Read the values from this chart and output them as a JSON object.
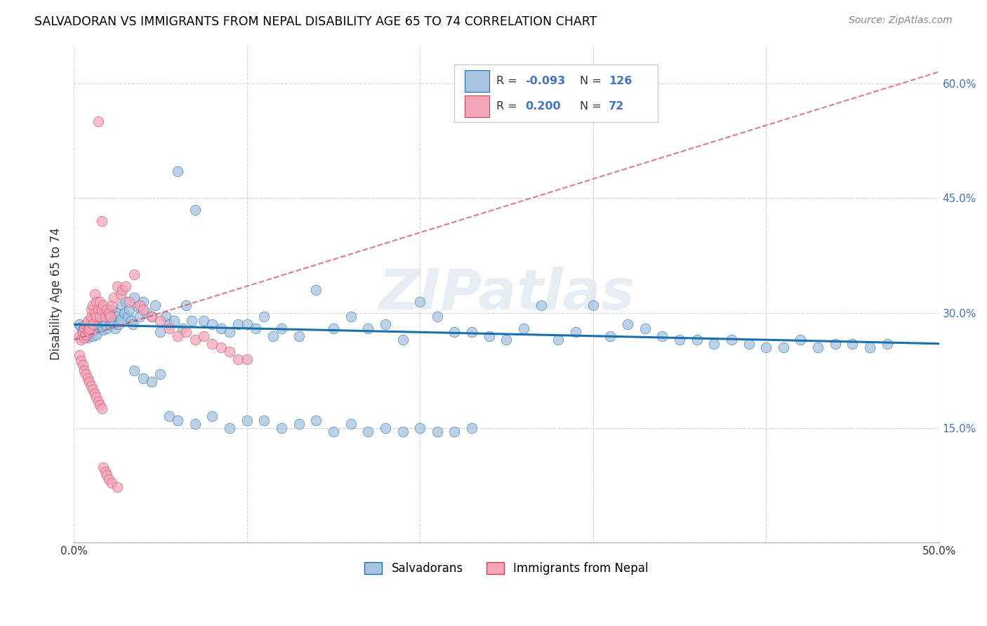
{
  "title": "SALVADORAN VS IMMIGRANTS FROM NEPAL DISABILITY AGE 65 TO 74 CORRELATION CHART",
  "source": "Source: ZipAtlas.com",
  "ylabel_label": "Disability Age 65 to 74",
  "xlim": [
    0.0,
    0.5
  ],
  "ylim": [
    0.0,
    0.65
  ],
  "x_ticks": [
    0.0,
    0.1,
    0.2,
    0.3,
    0.4,
    0.5
  ],
  "x_tick_labels": [
    "0.0%",
    "",
    "",
    "",
    "",
    "50.0%"
  ],
  "y_ticks": [
    0.0,
    0.15,
    0.3,
    0.45,
    0.6
  ],
  "y_tick_labels_right": [
    "",
    "15.0%",
    "30.0%",
    "45.0%",
    "60.0%"
  ],
  "R_salvadoran": -0.093,
  "N_salvadoran": 126,
  "R_nepal": 0.2,
  "N_nepal": 72,
  "salvadoran_color": "#a8c4e0",
  "nepal_color": "#f4a7b9",
  "trendline_salvadoran_color": "#1a6faf",
  "trendline_nepal_color": "#d04060",
  "watermark": "ZIPatlas",
  "trendline_salv_x0": 0.0,
  "trendline_salv_y0": 0.285,
  "trendline_salv_x1": 0.5,
  "trendline_salv_y1": 0.26,
  "trendline_nepal_x0": 0.0,
  "trendline_nepal_y0": 0.265,
  "trendline_nepal_x1": 0.5,
  "trendline_nepal_y1": 0.615,
  "salv_x": [
    0.003,
    0.004,
    0.005,
    0.006,
    0.007,
    0.008,
    0.009,
    0.01,
    0.01,
    0.011,
    0.011,
    0.012,
    0.012,
    0.013,
    0.013,
    0.014,
    0.015,
    0.015,
    0.016,
    0.016,
    0.017,
    0.018,
    0.018,
    0.019,
    0.02,
    0.02,
    0.021,
    0.022,
    0.022,
    0.023,
    0.024,
    0.025,
    0.025,
    0.026,
    0.027,
    0.028,
    0.029,
    0.03,
    0.031,
    0.032,
    0.033,
    0.034,
    0.035,
    0.037,
    0.038,
    0.04,
    0.042,
    0.045,
    0.047,
    0.05,
    0.053,
    0.055,
    0.058,
    0.06,
    0.063,
    0.065,
    0.068,
    0.07,
    0.075,
    0.08,
    0.085,
    0.09,
    0.095,
    0.1,
    0.105,
    0.11,
    0.115,
    0.12,
    0.13,
    0.14,
    0.15,
    0.16,
    0.17,
    0.18,
    0.19,
    0.2,
    0.21,
    0.22,
    0.23,
    0.24,
    0.25,
    0.26,
    0.27,
    0.28,
    0.29,
    0.3,
    0.31,
    0.32,
    0.33,
    0.34,
    0.35,
    0.36,
    0.37,
    0.38,
    0.39,
    0.4,
    0.41,
    0.42,
    0.43,
    0.44,
    0.45,
    0.46,
    0.47,
    0.035,
    0.04,
    0.045,
    0.05,
    0.055,
    0.06,
    0.07,
    0.08,
    0.09,
    0.1,
    0.11,
    0.12,
    0.13,
    0.14,
    0.15,
    0.16,
    0.17,
    0.18,
    0.19,
    0.2,
    0.21,
    0.22,
    0.23
  ],
  "salv_y": [
    0.285,
    0.282,
    0.278,
    0.28,
    0.275,
    0.268,
    0.272,
    0.288,
    0.275,
    0.27,
    0.28,
    0.285,
    0.278,
    0.29,
    0.272,
    0.295,
    0.288,
    0.285,
    0.282,
    0.295,
    0.278,
    0.29,
    0.285,
    0.28,
    0.295,
    0.3,
    0.285,
    0.305,
    0.29,
    0.285,
    0.28,
    0.3,
    0.295,
    0.285,
    0.292,
    0.31,
    0.3,
    0.315,
    0.295,
    0.305,
    0.29,
    0.285,
    0.32,
    0.308,
    0.295,
    0.315,
    0.3,
    0.295,
    0.31,
    0.275,
    0.295,
    0.285,
    0.29,
    0.485,
    0.28,
    0.31,
    0.29,
    0.435,
    0.29,
    0.285,
    0.28,
    0.275,
    0.285,
    0.285,
    0.28,
    0.295,
    0.27,
    0.28,
    0.27,
    0.33,
    0.28,
    0.295,
    0.28,
    0.285,
    0.265,
    0.315,
    0.295,
    0.275,
    0.275,
    0.27,
    0.265,
    0.28,
    0.31,
    0.265,
    0.275,
    0.31,
    0.27,
    0.285,
    0.28,
    0.27,
    0.265,
    0.265,
    0.26,
    0.265,
    0.26,
    0.255,
    0.255,
    0.265,
    0.255,
    0.26,
    0.26,
    0.255,
    0.26,
    0.225,
    0.215,
    0.21,
    0.22,
    0.165,
    0.16,
    0.155,
    0.165,
    0.15,
    0.16,
    0.16,
    0.15,
    0.155,
    0.16,
    0.145,
    0.155,
    0.145,
    0.15,
    0.145,
    0.15,
    0.145,
    0.145,
    0.15
  ],
  "nepal_x": [
    0.003,
    0.004,
    0.005,
    0.006,
    0.006,
    0.007,
    0.007,
    0.008,
    0.008,
    0.009,
    0.009,
    0.01,
    0.01,
    0.011,
    0.011,
    0.012,
    0.012,
    0.013,
    0.013,
    0.014,
    0.014,
    0.015,
    0.015,
    0.016,
    0.016,
    0.017,
    0.018,
    0.019,
    0.02,
    0.021,
    0.022,
    0.023,
    0.025,
    0.027,
    0.028,
    0.03,
    0.032,
    0.035,
    0.038,
    0.04,
    0.045,
    0.05,
    0.055,
    0.06,
    0.065,
    0.07,
    0.075,
    0.08,
    0.085,
    0.09,
    0.095,
    0.1,
    0.003,
    0.004,
    0.005,
    0.006,
    0.007,
    0.008,
    0.009,
    0.01,
    0.011,
    0.012,
    0.013,
    0.014,
    0.015,
    0.016,
    0.017,
    0.018,
    0.019,
    0.02,
    0.022,
    0.025
  ],
  "nepal_y": [
    0.27,
    0.265,
    0.275,
    0.268,
    0.28,
    0.272,
    0.285,
    0.278,
    0.29,
    0.275,
    0.28,
    0.295,
    0.305,
    0.285,
    0.31,
    0.3,
    0.325,
    0.295,
    0.315,
    0.305,
    0.55,
    0.295,
    0.315,
    0.42,
    0.305,
    0.31,
    0.295,
    0.305,
    0.3,
    0.295,
    0.31,
    0.32,
    0.335,
    0.325,
    0.33,
    0.335,
    0.315,
    0.35,
    0.31,
    0.305,
    0.295,
    0.29,
    0.28,
    0.27,
    0.275,
    0.265,
    0.27,
    0.26,
    0.255,
    0.25,
    0.24,
    0.24,
    0.245,
    0.238,
    0.232,
    0.225,
    0.22,
    0.215,
    0.21,
    0.205,
    0.2,
    0.195,
    0.19,
    0.185,
    0.18,
    0.175,
    0.098,
    0.093,
    0.088,
    0.083,
    0.078,
    0.073
  ]
}
